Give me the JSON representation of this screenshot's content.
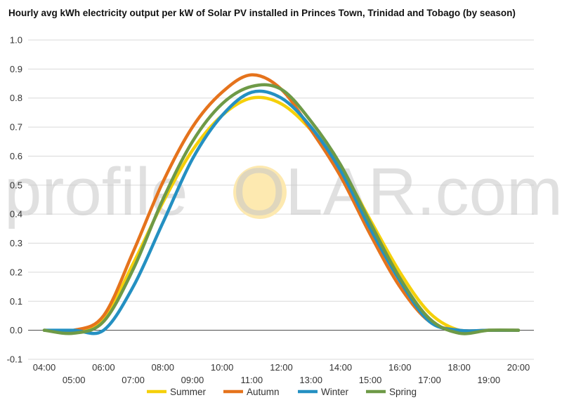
{
  "chart_data": {
    "type": "line",
    "title": "Hourly avg kWh electricity output per kW of Solar PV installed in Princes Town, Trinidad and Tobago (by season)",
    "xlabel": "",
    "ylabel": "",
    "ylim": [
      -0.1,
      1.0
    ],
    "yticks": [
      "1.0",
      "0.9",
      "0.8",
      "0.7",
      "0.6",
      "0.5",
      "0.4",
      "0.3",
      "0.2",
      "0.1",
      "0.0",
      "-0.1"
    ],
    "categories": [
      "04:00",
      "05:00",
      "06:00",
      "07:00",
      "08:00",
      "09:00",
      "10:00",
      "11:00",
      "12:00",
      "13:00",
      "14:00",
      "15:00",
      "16:00",
      "17:00",
      "18:00",
      "19:00",
      "20:00"
    ],
    "grid": true,
    "legend_position": "bottom",
    "series": [
      {
        "name": "Summer",
        "color": "#f5d00a",
        "values": [
          0.0,
          0.0,
          0.04,
          0.23,
          0.44,
          0.62,
          0.74,
          0.8,
          0.78,
          0.69,
          0.56,
          0.38,
          0.2,
          0.06,
          0.0,
          0.0,
          0.0
        ]
      },
      {
        "name": "Autumn",
        "color": "#e5731c",
        "values": [
          0.0,
          0.0,
          0.05,
          0.27,
          0.51,
          0.7,
          0.82,
          0.88,
          0.83,
          0.69,
          0.53,
          0.33,
          0.15,
          0.03,
          0.0,
          0.0,
          0.0
        ]
      },
      {
        "name": "Winter",
        "color": "#2490c2",
        "values": [
          0.0,
          0.0,
          0.0,
          0.15,
          0.37,
          0.59,
          0.74,
          0.82,
          0.8,
          0.7,
          0.55,
          0.35,
          0.17,
          0.03,
          0.0,
          0.0,
          0.0
        ]
      },
      {
        "name": "Spring",
        "color": "#6e9a47",
        "values": [
          0.0,
          -0.01,
          0.03,
          0.21,
          0.45,
          0.65,
          0.78,
          0.84,
          0.83,
          0.72,
          0.57,
          0.37,
          0.18,
          0.04,
          -0.01,
          0.0,
          0.0
        ]
      }
    ]
  },
  "watermark": {
    "part1": "profile",
    "part2": "S",
    "part3": "OLAR.com",
    "sun_color": "#fde9b0"
  }
}
